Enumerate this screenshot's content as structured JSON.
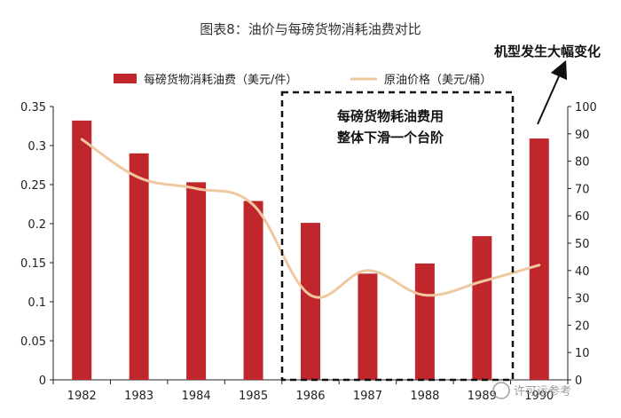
{
  "chart_data": {
    "type": "bar",
    "title": "图表8：油价与每磅货物消耗油费对比",
    "categories": [
      "1982",
      "1983",
      "1984",
      "1985",
      "1986",
      "1987",
      "1988",
      "1989",
      "1990"
    ],
    "series": [
      {
        "name": "每磅货物消耗油费（美元/件）",
        "type": "bar",
        "axis": "left",
        "color": "#c0272d",
        "values": [
          0.332,
          0.29,
          0.253,
          0.229,
          0.201,
          0.136,
          0.149,
          0.184,
          0.309
        ]
      },
      {
        "name": "原油价格（美元/桶）",
        "type": "line",
        "axis": "right",
        "color": "#f0c8a0",
        "values": [
          88,
          74,
          70,
          64,
          31,
          40,
          31,
          36,
          42
        ],
        "smooth": true
      }
    ],
    "y_left": {
      "min": 0,
      "max": 0.35,
      "ticks": [
        "0",
        "0.05",
        "0.1",
        "0.15",
        "0.2",
        "0.25",
        "0.3",
        "0.35"
      ]
    },
    "y_right": {
      "min": 0,
      "max": 100,
      "ticks": [
        "0",
        "10",
        "20",
        "30",
        "40",
        "50",
        "60",
        "70",
        "80",
        "90",
        "100"
      ]
    },
    "legend_position": "top",
    "annotations": {
      "box_text_line1": "每磅货物耗油费用",
      "box_text_line2": "整体下滑一个台阶",
      "arrow_text": "机型发生大幅变化"
    }
  },
  "watermark": "许可运参考",
  "colors": {
    "bar": "#c0272d",
    "line": "#f0c8a0",
    "axis": "#222222"
  }
}
